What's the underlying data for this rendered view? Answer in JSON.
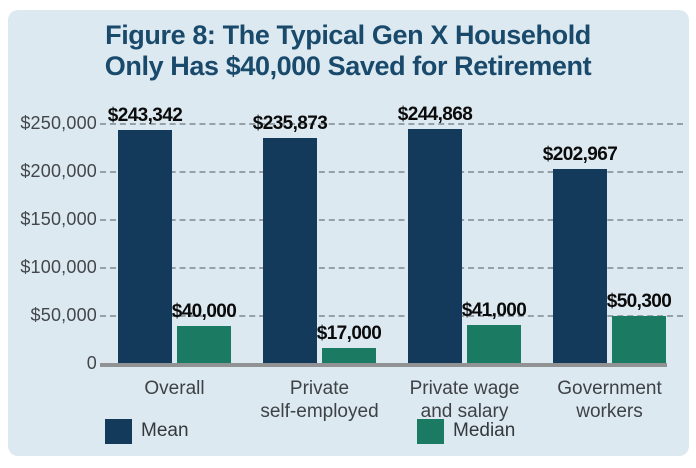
{
  "panel": {
    "bg": "#dce9f1"
  },
  "title": {
    "prefix": "Figure 8:",
    "rest": " The Typical Gen X Household",
    "line2": "Only Has $40,000 Saved for Retirement",
    "color": "#1a4a6b"
  },
  "chart_data": {
    "type": "bar",
    "title": "Figure 8: The Typical Gen X Household Only Has $40,000 Saved for Retirement",
    "categories": [
      "Overall",
      "Private\nself-employed",
      "Private wage\nand salary",
      "Government\nworkers"
    ],
    "series": [
      {
        "name": "Mean",
        "color": "#133a5b",
        "values": [
          243342,
          235873,
          244868,
          202967
        ],
        "labels": [
          "$243,342",
          "$235,873",
          "$244,868",
          "$202,967"
        ]
      },
      {
        "name": "Median",
        "color": "#1b7a62",
        "values": [
          40000,
          17000,
          41000,
          50300
        ],
        "labels": [
          "$40,000",
          "$17,000",
          "$41,000",
          "$50,300"
        ]
      }
    ],
    "yticks": [
      {
        "label": "$250,000",
        "value": 250000
      },
      {
        "label": "$200,000",
        "value": 200000
      },
      {
        "label": "$150,000",
        "value": 150000
      },
      {
        "label": "$100,000",
        "value": 100000
      },
      {
        "label": "$50,000",
        "value": 50000
      },
      {
        "label": "0",
        "value": 0
      }
    ],
    "ylim": [
      0,
      260000
    ],
    "grid": "horizontal-dashed",
    "legend_position": "bottom-left"
  },
  "legend": {
    "items": [
      {
        "label": "Mean",
        "color": "#133a5b"
      },
      {
        "label": "Median",
        "color": "#1b7a62"
      }
    ]
  }
}
